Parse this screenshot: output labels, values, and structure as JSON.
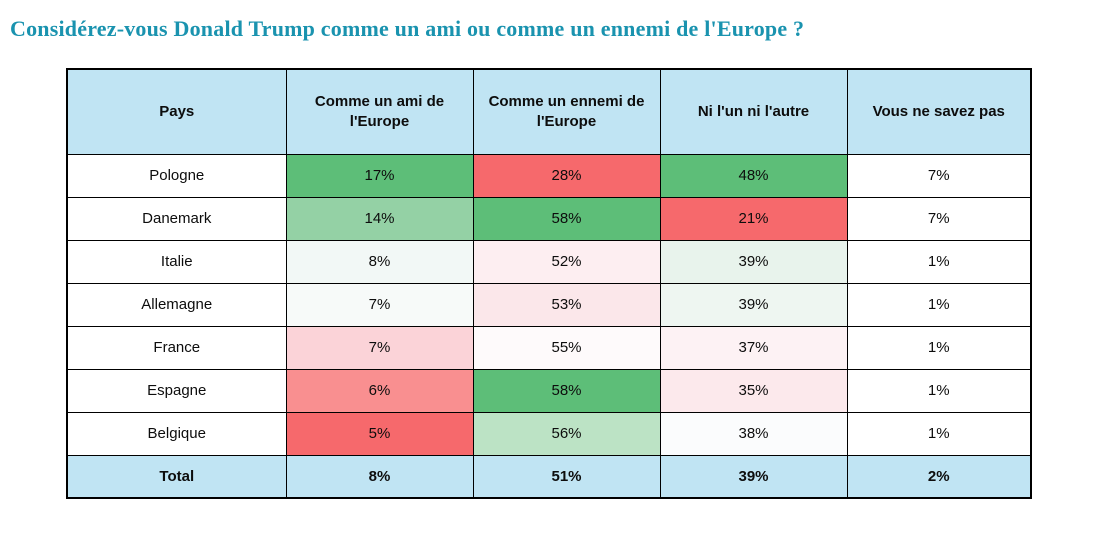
{
  "title": "Considérez-vous Donald Trump comme un ami ou comme un ennemi de l'Europe ?",
  "colors": {
    "title_text": "#1a93af",
    "header_bg": "#c0e4f3",
    "total_row_bg": "#c0e4f3",
    "border": "#000000",
    "heat_green_strong": "#5dbe78",
    "heat_red_strong": "#f6696c"
  },
  "chart_data": {
    "type": "table",
    "title": "Considérez-vous Donald Trump comme un ami ou comme un ennemi de l'Europe ?",
    "columns": [
      "Pays",
      "Comme un ami de l'Europe",
      "Comme un ennemi de l'Europe",
      "Ni l'un ni l'autre",
      "Vous ne savez pas"
    ],
    "unit": "percent",
    "layout_hints": {
      "heatmap_shading": "green = high relative score, red = low relative score, per column",
      "grid": true
    },
    "rows": [
      {
        "pays": "Pologne",
        "values": [
          "17%",
          "28%",
          "48%",
          "7%"
        ],
        "values_numeric": [
          17,
          28,
          48,
          7
        ],
        "cell_bg": [
          "#5dbe78",
          "#f6696c",
          "#5dbe78",
          "#ffffff"
        ]
      },
      {
        "pays": "Danemark",
        "values": [
          "14%",
          "58%",
          "21%",
          "7%"
        ],
        "values_numeric": [
          14,
          58,
          21,
          7
        ],
        "cell_bg": [
          "#94d1a5",
          "#5dbe78",
          "#f6696c",
          "#ffffff"
        ]
      },
      {
        "pays": "Italie",
        "values": [
          "8%",
          "52%",
          "39%",
          "1%"
        ],
        "values_numeric": [
          8,
          52,
          39,
          1
        ],
        "cell_bg": [
          "#f2f8f6",
          "#fdeef1",
          "#e8f3ec",
          "#ffffff"
        ]
      },
      {
        "pays": "Allemagne",
        "values": [
          "7%",
          "53%",
          "39%",
          "1%"
        ],
        "values_numeric": [
          7,
          53,
          39,
          1
        ],
        "cell_bg": [
          "#f7faf9",
          "#fbe7ea",
          "#eef6f1",
          "#ffffff"
        ]
      },
      {
        "pays": "France",
        "values": [
          "7%",
          "55%",
          "37%",
          "1%"
        ],
        "values_numeric": [
          7,
          55,
          37,
          1
        ],
        "cell_bg": [
          "#fbd3d8",
          "#fefafb",
          "#fdf2f4",
          "#ffffff"
        ]
      },
      {
        "pays": "Espagne",
        "values": [
          "6%",
          "58%",
          "35%",
          "1%"
        ],
        "values_numeric": [
          6,
          58,
          35,
          1
        ],
        "cell_bg": [
          "#f98f90",
          "#5dbe78",
          "#fce9ec",
          "#ffffff"
        ]
      },
      {
        "pays": "Belgique",
        "values": [
          "5%",
          "56%",
          "38%",
          "1%"
        ],
        "values_numeric": [
          5,
          56,
          38,
          1
        ],
        "cell_bg": [
          "#f6696c",
          "#bce3c5",
          "#fbfcfd",
          "#ffffff"
        ]
      }
    ],
    "total_row": {
      "pays": "Total",
      "values": [
        "8%",
        "51%",
        "39%",
        "2%"
      ],
      "values_numeric": [
        8,
        51,
        39,
        2
      ]
    }
  }
}
